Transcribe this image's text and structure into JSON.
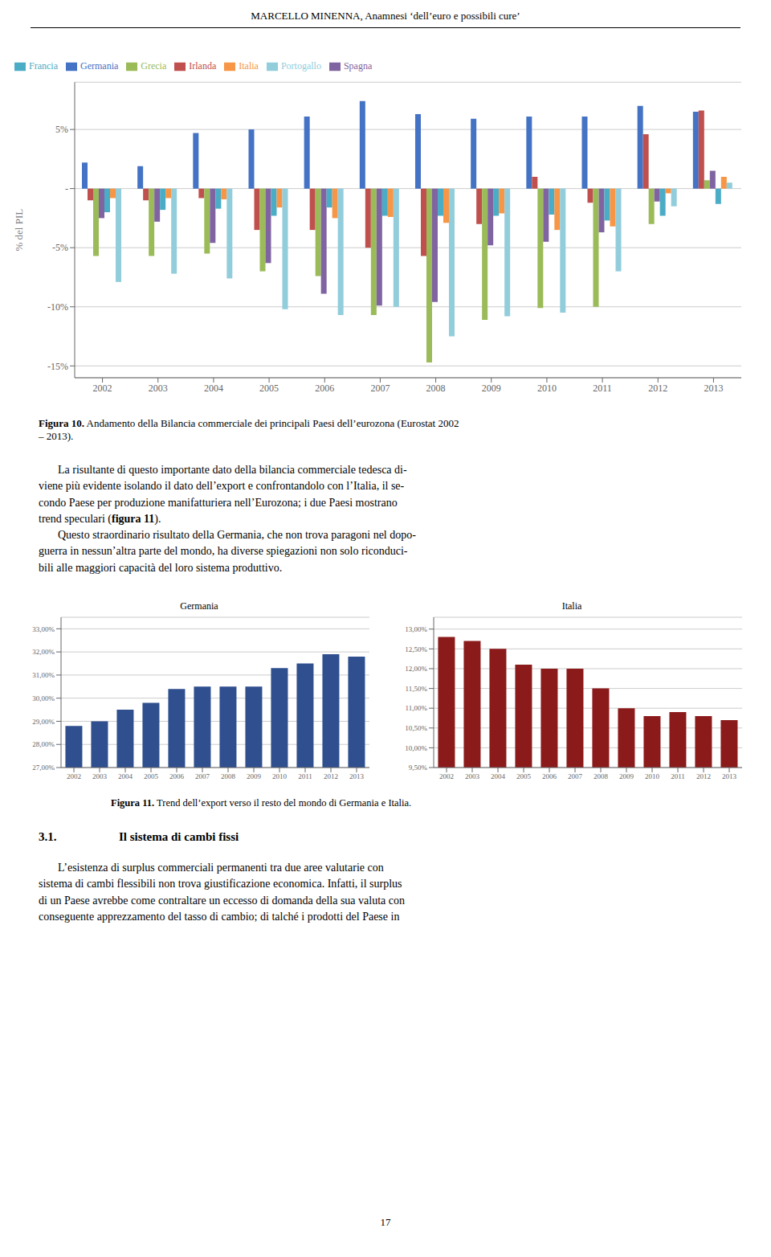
{
  "chart_data": [
    {
      "type": "bar",
      "ylabel": "% del PIL",
      "categories": [
        "2002",
        "2003",
        "2004",
        "2005",
        "2006",
        "2007",
        "2008",
        "2009",
        "2010",
        "2011",
        "2012",
        "2013"
      ],
      "series": [
        {
          "name": "Germania",
          "color": "#4472C4",
          "values": [
            2.2,
            1.9,
            4.7,
            5.0,
            6.1,
            7.4,
            6.3,
            5.9,
            6.1,
            6.1,
            7.0,
            6.5
          ]
        },
        {
          "name": "Irlanda",
          "color": "#C0504D",
          "values": [
            -1.0,
            -1.0,
            -0.8,
            -3.5,
            -3.5,
            -5.0,
            -5.7,
            -3.0,
            1.0,
            -1.2,
            4.6,
            6.6
          ]
        },
        {
          "name": "Grecia",
          "color": "#9BBB59",
          "values": [
            -5.7,
            -5.7,
            -5.5,
            -7.0,
            -7.4,
            -10.7,
            -14.7,
            -11.1,
            -10.1,
            -10.0,
            -3.0,
            0.7
          ]
        },
        {
          "name": "Spagna",
          "color": "#8064A2",
          "values": [
            -2.5,
            -2.8,
            -4.6,
            -6.3,
            -8.9,
            -9.9,
            -9.6,
            -4.8,
            -4.5,
            -3.7,
            -1.1,
            1.5
          ]
        },
        {
          "name": "Francia",
          "color": "#4BACC6",
          "values": [
            -2.0,
            -1.8,
            -1.7,
            -2.3,
            -1.6,
            -2.3,
            -2.3,
            -2.3,
            -2.2,
            -2.7,
            -2.3,
            -1.3
          ]
        },
        {
          "name": "Italia",
          "color": "#F79646",
          "values": [
            -0.8,
            -0.8,
            -0.9,
            -1.6,
            -2.5,
            -2.4,
            -2.9,
            -2.1,
            -3.5,
            -3.2,
            -0.4,
            1.0
          ]
        },
        {
          "name": "Portogallo",
          "color": "#92CDDC",
          "values": [
            -7.9,
            -7.2,
            -7.6,
            -10.2,
            -10.7,
            -10.0,
            -12.5,
            -10.8,
            -10.5,
            -7.0,
            -1.5,
            0.5
          ]
        }
      ],
      "ylim": [
        -16,
        9
      ],
      "yticks": [
        {
          "value": -15,
          "label": "-15%"
        },
        {
          "value": -10,
          "label": "-10%"
        },
        {
          "value": -5,
          "label": "-5%"
        },
        {
          "value": 0,
          "label": "-"
        },
        {
          "value": 5,
          "label": "5%"
        }
      ],
      "grid": true,
      "legend": "upper left"
    },
    {
      "type": "bar",
      "title": "Germania",
      "categories": [
        "2002",
        "2003",
        "2004",
        "2005",
        "2006",
        "2007",
        "2008",
        "2009",
        "2010",
        "2011",
        "2012",
        "2013"
      ],
      "values": [
        28.8,
        29.0,
        29.5,
        29.8,
        30.4,
        30.5,
        30.5,
        30.5,
        31.3,
        31.5,
        31.9,
        31.8
      ],
      "color": "#2F4F8F",
      "ylim": [
        27.0,
        33.5
      ],
      "yticks": [
        {
          "value": 27.0,
          "label": "27,00%"
        },
        {
          "value": 28.0,
          "label": "28,00%"
        },
        {
          "value": 29.0,
          "label": "29,00%"
        },
        {
          "value": 30.0,
          "label": "30,00%"
        },
        {
          "value": 31.0,
          "label": "31,00%"
        },
        {
          "value": 32.0,
          "label": "32,00%"
        },
        {
          "value": 33.0,
          "label": "33,00%"
        }
      ],
      "grid": true
    },
    {
      "type": "bar",
      "title": "Italia",
      "categories": [
        "2002",
        "2003",
        "2004",
        "2005",
        "2006",
        "2007",
        "2008",
        "2009",
        "2010",
        "2011",
        "2012",
        "2013"
      ],
      "values": [
        12.8,
        12.7,
        12.5,
        12.1,
        12.0,
        12.0,
        11.5,
        11.0,
        10.8,
        10.9,
        10.8,
        10.7
      ],
      "color": "#8B1A1A",
      "ylim": [
        9.5,
        13.3
      ],
      "yticks": [
        {
          "value": 9.5,
          "label": "9,50%"
        },
        {
          "value": 10.0,
          "label": "10,00%"
        },
        {
          "value": 10.5,
          "label": "10,50%"
        },
        {
          "value": 11.0,
          "label": "11,00%"
        },
        {
          "value": 11.5,
          "label": "11,50%"
        },
        {
          "value": 12.0,
          "label": "12,00%"
        },
        {
          "value": 12.5,
          "label": "12,50%"
        },
        {
          "value": 13.0,
          "label": "13,00%"
        }
      ],
      "grid": true
    }
  ],
  "annotations": [
    "MARCELLO MINENNA, Anamnesi ‘dell’euro e possibili cure’",
    "Figura 10.",
    " Andamento della Bilancia commerciale dei principali Paesi dell’eurozona (Eurostat 2002\n– 2013).",
    "La risultante di questo importante dato della bilancia commerciale tedesca di-\nviene più evidente isolando il dato dell’export e confrontandolo con l’Italia, il se-\ncondo Paese per produzione manifatturiera nell’Eurozona; i due Paesi mostrano\ntrend speculari (",
    "figura 11",
    ").",
    "Questo straordinario risultato della Germania, che non trova paragoni nel dopo-\nguerra in nessun’altra parte del mondo, ha diverse spiegazioni non solo riconduci-\nbili alle maggiori capacità del loro sistema produttivo.",
    "Figura 11.",
    " Trend dell’export verso il resto del mondo di Germania e Italia.",
    "3.1.",
    "Il sistema di cambi fissi",
    "L’esistenza di surplus commerciali permanenti tra due aree valutarie con\nsistema di cambi flessibili non trova giustificazione economica. Infatti, il surplus\ndi un Paese avrebbe come contraltare un eccesso di domanda della sua valuta con\nconseguente apprezzamento del tasso di cambio; di talché i prodotti del Paese in",
    "17"
  ]
}
